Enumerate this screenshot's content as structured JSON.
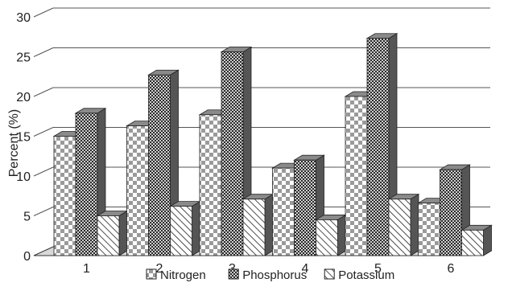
{
  "chart_data": {
    "type": "bar",
    "subtype": "3d-grouped",
    "categories": [
      "1",
      "2",
      "3",
      "4",
      "5",
      "6"
    ],
    "series": [
      {
        "name": "Nitrogen",
        "pattern": "checker",
        "values": [
          15.0,
          16.3,
          17.7,
          11.0,
          20.0,
          6.6
        ]
      },
      {
        "name": "Phosphorus",
        "pattern": "dots",
        "values": [
          17.9,
          22.7,
          25.6,
          12.0,
          27.3,
          10.8
        ]
      },
      {
        "name": "Potassium",
        "pattern": "hatch",
        "values": [
          5.0,
          6.2,
          7.1,
          4.5,
          7.1,
          3.2
        ]
      }
    ],
    "ylabel": "Percent (%)",
    "xlabel": "",
    "ylim": [
      0,
      30
    ],
    "yticks": [
      0,
      5,
      10,
      15,
      20,
      25,
      30
    ],
    "grid": true,
    "legend_position": "bottom",
    "colors": {
      "grid": "#555555",
      "floor": "#d8d8d8",
      "dark": "#555555",
      "light": "#ffffff"
    }
  }
}
